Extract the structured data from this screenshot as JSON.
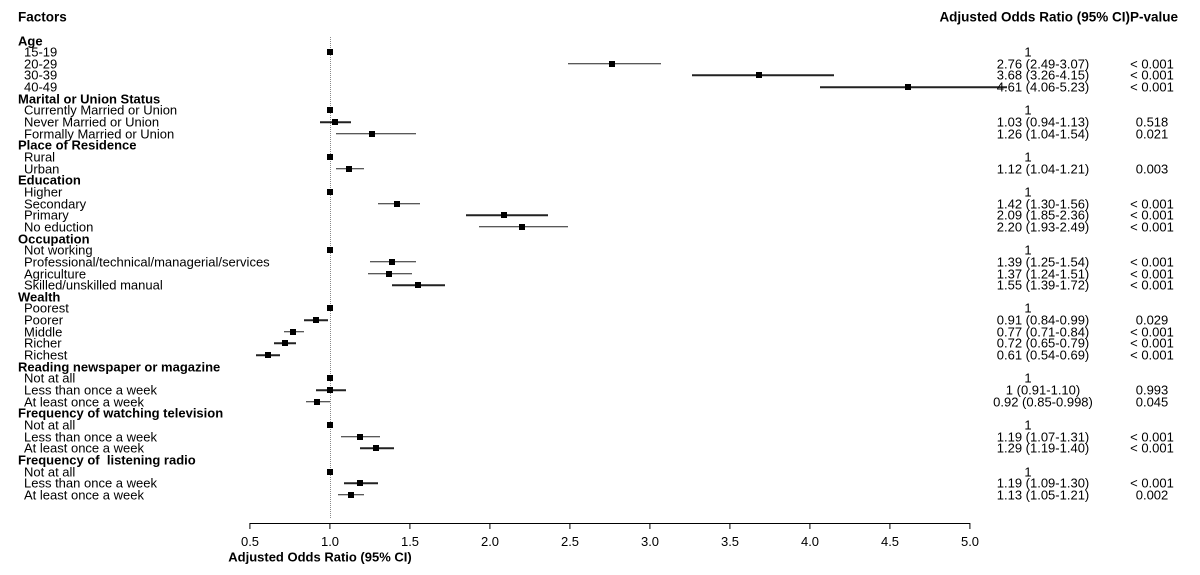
{
  "headers": {
    "factors": "Factors",
    "or_ci": "Adjusted Odds Ratio (95% CI)",
    "p": "P-value"
  },
  "colors": {
    "text": "#000000",
    "marker": "#000000",
    "ci_line": "#222222",
    "reference_line": "#8a8a8a",
    "background": "#ffffff"
  },
  "chart_data": {
    "type": "scatter",
    "subtype": "forest-plot",
    "title": "",
    "xlabel": "Adjusted Odds Ratio (95% CI)",
    "axis": {
      "min": 0.5,
      "max": 5.0,
      "reference_line": 1.0,
      "ticks": [
        "0.5",
        "1.0",
        "1.5",
        "2.0",
        "2.5",
        "3.0",
        "3.5",
        "4.0",
        "4.5",
        "5.0"
      ],
      "tick_values": [
        0.5,
        1.0,
        1.5,
        2.0,
        2.5,
        3.0,
        3.5,
        4.0,
        4.5,
        5.0
      ]
    },
    "groups": [
      {
        "label": "Age",
        "items": [
          {
            "label": "15-19",
            "or": 1,
            "ci": null,
            "or_text": "1",
            "p_text": "",
            "ref": true
          },
          {
            "label": "20-29",
            "or": 2.76,
            "ci": [
              2.49,
              3.07
            ],
            "or_text": "2.76 (2.49-3.07)",
            "p_text": "< 0.001",
            "ref": false
          },
          {
            "label": "30-39",
            "or": 3.68,
            "ci": [
              3.26,
              4.15
            ],
            "or_text": "3.68 (3.26-4.15)",
            "p_text": "< 0.001",
            "ref": false
          },
          {
            "label": "40-49",
            "or": 4.61,
            "ci": [
              4.06,
              5.23
            ],
            "or_text": "4.61 (4.06-5.23)",
            "p_text": "< 0.001",
            "ref": false
          }
        ]
      },
      {
        "label": "Marital or Union Status",
        "items": [
          {
            "label": "Currently Married or Union",
            "or": 1,
            "ci": null,
            "or_text": "1",
            "p_text": "",
            "ref": true
          },
          {
            "label": "Never Married or Union",
            "or": 1.03,
            "ci": [
              0.94,
              1.13
            ],
            "or_text": "1.03 (0.94-1.13)",
            "p_text": "0.518",
            "ref": false
          },
          {
            "label": "Formally Married or Union",
            "or": 1.26,
            "ci": [
              1.04,
              1.54
            ],
            "or_text": "1.26 (1.04-1.54)",
            "p_text": "0.021",
            "ref": false
          }
        ]
      },
      {
        "label": "Place of Residence",
        "items": [
          {
            "label": "Rural",
            "or": 1,
            "ci": null,
            "or_text": "1",
            "p_text": "",
            "ref": true
          },
          {
            "label": "Urban",
            "or": 1.12,
            "ci": [
              1.04,
              1.21
            ],
            "or_text": "1.12 (1.04-1.21)",
            "p_text": "0.003",
            "ref": false
          }
        ]
      },
      {
        "label": "Education",
        "items": [
          {
            "label": "Higher",
            "or": 1,
            "ci": null,
            "or_text": "1",
            "p_text": "",
            "ref": true
          },
          {
            "label": "Secondary",
            "or": 1.42,
            "ci": [
              1.3,
              1.56
            ],
            "or_text": "1.42 (1.30-1.56)",
            "p_text": "< 0.001",
            "ref": false
          },
          {
            "label": "Primary",
            "or": 2.09,
            "ci": [
              1.85,
              2.36
            ],
            "or_text": "2.09 (1.85-2.36)",
            "p_text": "< 0.001",
            "ref": false
          },
          {
            "label": "No eduction",
            "or": 2.2,
            "ci": [
              1.93,
              2.49
            ],
            "or_text": "2.20 (1.93-2.49)",
            "p_text": "< 0.001",
            "ref": false
          }
        ]
      },
      {
        "label": "Occupation",
        "items": [
          {
            "label": "Not working",
            "or": 1,
            "ci": null,
            "or_text": "1",
            "p_text": "",
            "ref": true
          },
          {
            "label": "Professional/technical/managerial/services",
            "or": 1.39,
            "ci": [
              1.25,
              1.54
            ],
            "or_text": "1.39 (1.25-1.54)",
            "p_text": "< 0.001",
            "ref": false
          },
          {
            "label": "Agriculture",
            "or": 1.37,
            "ci": [
              1.24,
              1.51
            ],
            "or_text": "1.37 (1.24-1.51)",
            "p_text": "< 0.001",
            "ref": false
          },
          {
            "label": "Skilled/unskilled manual",
            "or": 1.55,
            "ci": [
              1.39,
              1.72
            ],
            "or_text": "1.55 (1.39-1.72)",
            "p_text": "< 0.001",
            "ref": false
          }
        ]
      },
      {
        "label": "Wealth",
        "items": [
          {
            "label": "Poorest",
            "or": 1,
            "ci": null,
            "or_text": "1",
            "p_text": "",
            "ref": true
          },
          {
            "label": "Poorer",
            "or": 0.91,
            "ci": [
              0.84,
              0.99
            ],
            "or_text": "0.91 (0.84-0.99)",
            "p_text": "0.029",
            "ref": false
          },
          {
            "label": "Middle",
            "or": 0.77,
            "ci": [
              0.71,
              0.84
            ],
            "or_text": "0.77 (0.71-0.84)",
            "p_text": "< 0.001",
            "ref": false
          },
          {
            "label": "Richer",
            "or": 0.72,
            "ci": [
              0.65,
              0.79
            ],
            "or_text": "0.72 (0.65-0.79)",
            "p_text": "< 0.001",
            "ref": false
          },
          {
            "label": "Richest",
            "or": 0.61,
            "ci": [
              0.54,
              0.69
            ],
            "or_text": "0.61 (0.54-0.69)",
            "p_text": "< 0.001",
            "ref": false
          }
        ]
      },
      {
        "label": "Reading newspaper or magazine",
        "items": [
          {
            "label": "Not at all",
            "or": 1,
            "ci": null,
            "or_text": "1",
            "p_text": "",
            "ref": true
          },
          {
            "label": "Less than once a week",
            "or": 1.0,
            "ci": [
              0.91,
              1.1
            ],
            "or_text": "1 (0.91-1.10)",
            "p_text": "0.993",
            "ref": false
          },
          {
            "label": "At least once a week",
            "or": 0.92,
            "ci": [
              0.85,
              0.998
            ],
            "or_text": "0.92 (0.85-0.998)",
            "p_text": "0.045",
            "ref": false
          }
        ]
      },
      {
        "label": "Frequency of watching television",
        "items": [
          {
            "label": "Not at all",
            "or": 1,
            "ci": null,
            "or_text": "1",
            "p_text": "",
            "ref": true
          },
          {
            "label": "Less than once a week",
            "or": 1.19,
            "ci": [
              1.07,
              1.31
            ],
            "or_text": "1.19 (1.07-1.31)",
            "p_text": "< 0.001",
            "ref": false
          },
          {
            "label": "At least once a week",
            "or": 1.29,
            "ci": [
              1.19,
              1.4
            ],
            "or_text": "1.29 (1.19-1.40)",
            "p_text": "< 0.001",
            "ref": false
          }
        ]
      },
      {
        "label": "Frequency of  listening radio",
        "items": [
          {
            "label": "Not at all",
            "or": 1,
            "ci": null,
            "or_text": "1",
            "p_text": "",
            "ref": true
          },
          {
            "label": "Less than once a week",
            "or": 1.19,
            "ci": [
              1.09,
              1.3
            ],
            "or_text": "1.19 (1.09-1.30)",
            "p_text": "< 0.001",
            "ref": false
          },
          {
            "label": "At least once a week",
            "or": 1.13,
            "ci": [
              1.05,
              1.21
            ],
            "or_text": "1.13 (1.05-1.21)",
            "p_text": "0.002",
            "ref": false
          }
        ]
      }
    ]
  }
}
